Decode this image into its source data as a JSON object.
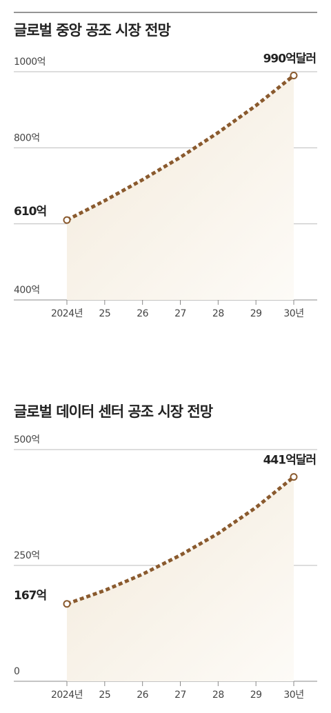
{
  "chart_data": [
    {
      "type": "line",
      "title": "글로벌 중앙 공조 시장 전망",
      "categories": [
        "2024년",
        "25",
        "26",
        "27",
        "28",
        "29",
        "30년"
      ],
      "values": [
        610,
        661,
        716,
        775,
        840,
        911,
        990
      ],
      "value_labels": [
        "610억",
        null,
        null,
        null,
        null,
        null,
        "990억달러"
      ],
      "color": "#8a5a2e",
      "ylim": [
        400,
        1000
      ],
      "yticks": [
        {
          "value": 400,
          "label": "400억"
        },
        {
          "value": 600,
          "label": null
        },
        {
          "value": 800,
          "label": "800억"
        },
        {
          "value": 1000,
          "label": "1000억"
        }
      ],
      "grid": true
    },
    {
      "type": "line",
      "title": "글로벌 데이터 센터 공조 시장 전망",
      "categories": [
        "2024년",
        "25",
        "26",
        "27",
        "28",
        "29",
        "30년"
      ],
      "values": [
        167,
        196,
        231,
        272,
        319,
        375,
        441
      ],
      "value_labels": [
        "167억",
        null,
        null,
        null,
        null,
        null,
        "441억달러"
      ],
      "color": "#8a5a2e",
      "ylim": [
        0,
        500
      ],
      "yticks": [
        0,
        {
          "value": 250,
          "label": "250억"
        },
        {
          "value": 500,
          "label": "500억"
        }
      ],
      "grid": true
    }
  ]
}
